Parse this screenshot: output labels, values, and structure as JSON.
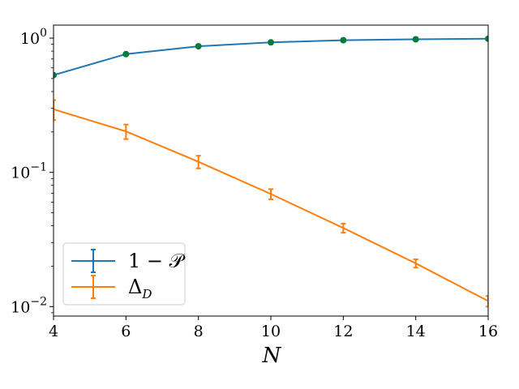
{
  "chart_data": {
    "type": "line",
    "xlabel": "N",
    "ylabel": "",
    "title": "",
    "xlim": [
      4,
      16
    ],
    "ylim": [
      0.0085,
      1.25
    ],
    "yscale": "log",
    "grid": false,
    "legend_position": "lower-left",
    "x": [
      4,
      6,
      8,
      10,
      12,
      14,
      16
    ],
    "x_ticks": [
      "4",
      "6",
      "8",
      "10",
      "12",
      "14",
      "16"
    ],
    "y_ticks": [
      {
        "value": 1,
        "base": "10",
        "exp": "0"
      },
      {
        "value": 0.1,
        "base": "10",
        "exp": "−1"
      },
      {
        "value": 0.01,
        "base": "10",
        "exp": "−2"
      }
    ],
    "series": [
      {
        "name": "1 − 𝒫",
        "color": "#1f77b4",
        "marker_color": "#007a3d",
        "values": [
          0.53,
          0.76,
          0.87,
          0.93,
          0.965,
          0.98,
          0.99
        ],
        "errors": [
          0.01,
          0.01,
          0.01,
          0.005,
          0.005,
          0.005,
          0.005
        ]
      },
      {
        "name": "Δ",
        "name_subscript": "D",
        "color": "#ff7f0e",
        "values": [
          0.295,
          0.202,
          0.12,
          0.069,
          0.0385,
          0.021,
          0.011
        ],
        "errors": [
          0.05,
          0.025,
          0.013,
          0.006,
          0.003,
          0.0015,
          0.001
        ]
      }
    ]
  }
}
